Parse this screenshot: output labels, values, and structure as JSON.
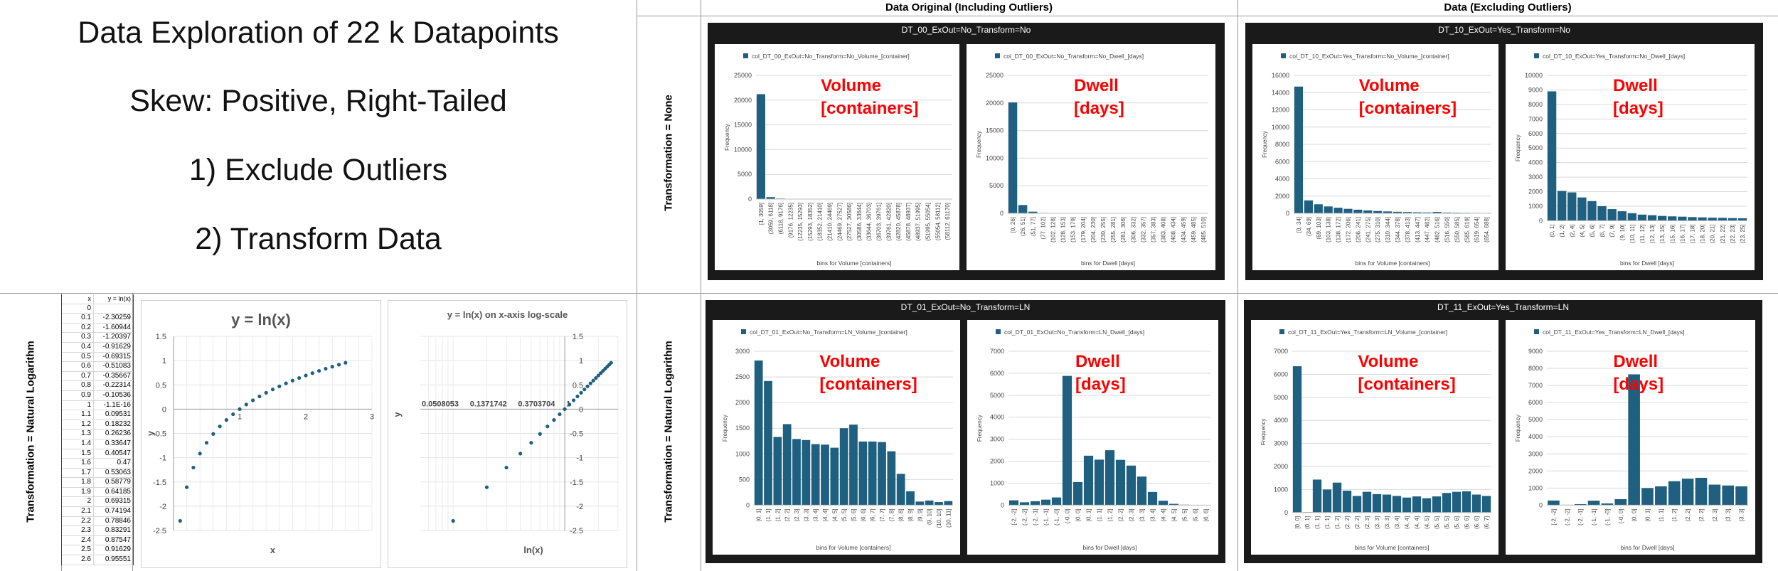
{
  "intro": {
    "title": "Data Exploration of 22 k Datapoints",
    "skew": "Skew: Positive, Right-Tailed",
    "step1": "1) Exclude Outliers",
    "step2": "2) Transform Data"
  },
  "headers": {
    "original": "Data Original (Including Outliers)",
    "excluding": "Data (Excluding Outliers)",
    "row_none": "Transformation = None",
    "row_ln": "Transformation = Natural Logarithm"
  },
  "ln_table": {
    "col_x": "x",
    "col_y": "y = ln(x)",
    "rows": [
      [
        "0",
        ""
      ],
      [
        "0.1",
        "-2.30259"
      ],
      [
        "0.2",
        "-1.60944"
      ],
      [
        "0.3",
        "-1.20397"
      ],
      [
        "0.4",
        "-0.91629"
      ],
      [
        "0.5",
        "-0.69315"
      ],
      [
        "0.6",
        "-0.51083"
      ],
      [
        "0.7",
        "-0.35667"
      ],
      [
        "0.8",
        "-0.22314"
      ],
      [
        "0.9",
        "-0.10536"
      ],
      [
        "1",
        "-1.1E-16"
      ],
      [
        "1.1",
        "0.09531"
      ],
      [
        "1.2",
        "0.18232"
      ],
      [
        "1.3",
        "0.26236"
      ],
      [
        "1.4",
        "0.33647"
      ],
      [
        "1.5",
        "0.40547"
      ],
      [
        "1.6",
        "0.47"
      ],
      [
        "1.7",
        "0.53063"
      ],
      [
        "1.8",
        "0.58779"
      ],
      [
        "1.9",
        "0.64185"
      ],
      [
        "2",
        "0.69315"
      ],
      [
        "2.1",
        "0.74194"
      ],
      [
        "2.2",
        "0.78846"
      ],
      [
        "2.3",
        "0.83291"
      ],
      [
        "2.4",
        "0.87547"
      ],
      [
        "2.5",
        "0.91629"
      ],
      [
        "2.6",
        "0.95551"
      ]
    ]
  },
  "colors": {
    "bar": "#1f5f7f",
    "overlay": "#ff0000",
    "panel": "#1a1a1a",
    "grid": "#d9d9d9"
  },
  "chart_data": [
    {
      "id": "ln_linear",
      "type": "scatter",
      "title": "y = ln(x)",
      "xlabel": "x",
      "ylabel": "y",
      "xlim": [
        0,
        3
      ],
      "ylim": [
        -2.5,
        1.5
      ],
      "xticks": [
        "1",
        "2",
        "3"
      ],
      "yticks": [
        "1.5",
        "1",
        "0.5",
        "0",
        "-0.5",
        "-1",
        "-1.5",
        "-2",
        "-2.5"
      ],
      "x": [
        0.1,
        0.2,
        0.3,
        0.4,
        0.5,
        0.6,
        0.7,
        0.8,
        0.9,
        1,
        1.1,
        1.2,
        1.3,
        1.4,
        1.5,
        1.6,
        1.7,
        1.8,
        1.9,
        2,
        2.1,
        2.2,
        2.3,
        2.4,
        2.5,
        2.6
      ],
      "y": [
        -2.30259,
        -1.60944,
        -1.20397,
        -0.91629,
        -0.69315,
        -0.51083,
        -0.35667,
        -0.22314,
        -0.10536,
        0,
        0.09531,
        0.18232,
        0.26236,
        0.33647,
        0.40547,
        0.47,
        0.53063,
        0.58779,
        0.64185,
        0.69315,
        0.74194,
        0.78846,
        0.83291,
        0.87547,
        0.91629,
        0.95551
      ]
    },
    {
      "id": "ln_log",
      "type": "scatter",
      "title": "y = ln(x) on x-axis log-scale",
      "xlabel": "ln(x)",
      "ylabel": "y",
      "xscale": "log",
      "xlim": [
        0.0508053,
        3
      ],
      "ylim": [
        -2.5,
        1.5
      ],
      "xticks": [
        "0.0508053",
        "0.1371742",
        "0.3703704",
        "1"
      ],
      "yticks": [
        "1.5",
        "1",
        "0.5",
        "0",
        "-0.5",
        "-1",
        "-1.5",
        "-2",
        "-2.5"
      ],
      "x": [
        0.1,
        0.2,
        0.3,
        0.4,
        0.5,
        0.6,
        0.7,
        0.8,
        0.9,
        1,
        1.1,
        1.2,
        1.3,
        1.4,
        1.5,
        1.6,
        1.7,
        1.8,
        1.9,
        2,
        2.1,
        2.2,
        2.3,
        2.4,
        2.5,
        2.6
      ],
      "y": [
        -2.30259,
        -1.60944,
        -1.20397,
        -0.91629,
        -0.69315,
        -0.51083,
        -0.35667,
        -0.22314,
        -0.10536,
        0,
        0.09531,
        0.18232,
        0.26236,
        0.33647,
        0.40547,
        0.47,
        0.53063,
        0.58779,
        0.64185,
        0.69315,
        0.74194,
        0.78846,
        0.83291,
        0.87547,
        0.91629,
        0.95551
      ]
    },
    {
      "id": "dt00_vol",
      "panel": "DT_00_ExOut=No_Transform=No",
      "type": "bar",
      "legend": "col_DT_00_ExOut=No_Transform=No_Volume_[container]",
      "overlay": [
        "Volume",
        "[containers]"
      ],
      "xlabel": "bins for Volume [containers]",
      "ylabel": "Frequency",
      "ylim": [
        0,
        25000
      ],
      "yticks": [
        "25000",
        "20000",
        "15000",
        "10000",
        "5000",
        "0"
      ],
      "categories": [
        "[1, 3059]",
        "(3059, 6118]",
        "(6118, 9176]",
        "(9176, 12235]",
        "(12235, 15293]",
        "(15293, 18352]",
        "(18352, 21410]",
        "(21410, 24469]",
        "(24469, 27527]",
        "(27527, 30586]",
        "(30586, 33644]",
        "(33644, 36703]",
        "(36703, 39761]",
        "(39761, 42820]",
        "(42820, 45878]",
        "(45878, 48937]",
        "(48937, 51995]",
        "(51995, 55054]",
        "(55054, 58112]",
        "(58112, 61170]"
      ],
      "values": [
        21200,
        400,
        120,
        60,
        30,
        20,
        15,
        10,
        8,
        6,
        5,
        4,
        3,
        3,
        2,
        2,
        1,
        1,
        1,
        1
      ]
    },
    {
      "id": "dt00_dwell",
      "panel": "DT_00_ExOut=No_Transform=No",
      "type": "bar",
      "legend": "col_DT_00_ExOut=No_Transform=No_Dwell_[days]",
      "overlay": [
        "Dwell",
        "[days]"
      ],
      "xlabel": "bins for Dwell [days]",
      "ylabel": "Frequency",
      "ylim": [
        0,
        25000
      ],
      "yticks": [
        "25000",
        "20000",
        "15000",
        "10000",
        "5000",
        "0"
      ],
      "categories": [
        "[0, 26]",
        "(26, 51]",
        "(51, 77]",
        "(77, 102]",
        "(102, 128]",
        "(128, 153]",
        "(153, 179]",
        "(179, 204]",
        "(204, 230]",
        "(230, 255]",
        "(255, 281]",
        "(281, 306]",
        "(306, 332]",
        "(332, 357]",
        "(357, 383]",
        "(383, 408]",
        "(408, 434]",
        "(434, 459]",
        "(459, 485]",
        "(485, 510]"
      ],
      "values": [
        20100,
        1500,
        300,
        80,
        40,
        20,
        12,
        8,
        6,
        5,
        4,
        3,
        3,
        2,
        2,
        1,
        1,
        1,
        1,
        1
      ]
    },
    {
      "id": "dt10_vol",
      "panel": "DT_10_ExOut=Yes_Transform=No",
      "type": "bar",
      "legend": "col_DT_10_ExOut=Yes_Transform=No_Volume_[container]",
      "overlay": [
        "Volume",
        "[containers]"
      ],
      "xlabel": "bins for Volume [containers]",
      "ylabel": "Frequency",
      "ylim": [
        0,
        16000
      ],
      "yticks": [
        "16000",
        "14000",
        "12000",
        "10000",
        "8000",
        "6000",
        "4000",
        "2000",
        "0"
      ],
      "categories": [
        "[0, 34]",
        "(34, 69]",
        "(69, 103]",
        "(103, 138]",
        "(138, 172]",
        "(172, 206]",
        "(206, 241]",
        "(241, 275]",
        "(275, 310]",
        "(310, 344]",
        "(344, 378]",
        "(378, 413]",
        "(413, 447]",
        "(447, 482]",
        "(482, 516]",
        "(516, 550]",
        "(550, 585]",
        "(585, 619]",
        "(619, 654]",
        "(654, 688]"
      ],
      "values": [
        14700,
        1500,
        1050,
        800,
        650,
        520,
        420,
        340,
        270,
        220,
        180,
        150,
        120,
        100,
        160,
        90,
        75,
        60,
        50,
        45
      ]
    },
    {
      "id": "dt10_dwell",
      "panel": "DT_10_ExOut=Yes_Transform=No",
      "type": "bar",
      "legend": "col_DT_10_ExOut=Yes_Transform=No_Dwell_[days]",
      "overlay": [
        "Dwell",
        "[days]"
      ],
      "xlabel": "bins for Dwell [days]",
      "ylabel": "Frequency",
      "ylim": [
        0,
        10000
      ],
      "yticks": [
        "10000",
        "9000",
        "8000",
        "7000",
        "6000",
        "5000",
        "4000",
        "3000",
        "2000",
        "1000",
        "0"
      ],
      "categories": [
        "(0, 1]",
        "(1, 2]",
        "(2, 4]",
        "(4, 5]",
        "(5, 6]",
        "(6, 7]",
        "(7, 9]",
        "(9, 10]",
        "(10, 11]",
        "(11, 12]",
        "(12, 13]",
        "(13, 15]",
        "(15, 16]",
        "(16, 17]",
        "(17, 18]",
        "(18, 20]",
        "(20, 21]",
        "(21, 22]",
        "(22, 23]",
        "(23, 25]"
      ],
      "values": [
        8900,
        2050,
        1950,
        1600,
        1350,
        1000,
        800,
        650,
        520,
        420,
        380,
        330,
        300,
        280,
        250,
        230,
        210,
        200,
        180,
        170
      ]
    },
    {
      "id": "dt01_vol",
      "panel": "DT_01_ExOut=No_Transform=LN",
      "type": "bar",
      "legend": "col_DT_01_ExOut=No_Transform=LN_Volume_[container]",
      "overlay": [
        "Volume",
        "[containers]"
      ],
      "xlabel": "bins for Volume [containers]",
      "ylabel": "Frequency",
      "ylim": [
        0,
        3000
      ],
      "yticks": [
        "3000",
        "2500",
        "2000",
        "1500",
        "1000",
        "500",
        "0"
      ],
      "categories": [
        "(0, 1]",
        "(1, 1]",
        "(1, 2]",
        "(2, 2]",
        "(2, 3]",
        "(3, 3]",
        "(3, 4]",
        "(4, 4]",
        "(4, 5]",
        "(5, 5]",
        "(5, 6]",
        "(6, 6]",
        "(6, 7]",
        "(7, 7]",
        "(7, 8]",
        "(8, 8]",
        "(8, 9]",
        "(9, 9]",
        "(9, 10]",
        "(10, 10]",
        "(10, 11]"
      ],
      "values": [
        2820,
        2420,
        1330,
        1580,
        1290,
        1270,
        1190,
        1180,
        1120,
        1500,
        1570,
        1240,
        1240,
        1230,
        1050,
        610,
        270,
        70,
        90,
        60,
        80
      ]
    },
    {
      "id": "dt01_dwell",
      "panel": "DT_01_ExOut=No_Transform=LN",
      "type": "bar",
      "legend": "col_DT_01_ExOut=No_Transform=LN_Dwell_[days]",
      "overlay": [
        "Dwell",
        "[days]"
      ],
      "xlabel": "bins for Dwell [days]",
      "ylabel": "Frequency",
      "ylim": [
        0,
        7000
      ],
      "yticks": [
        "7000",
        "6000",
        "5000",
        "4000",
        "3000",
        "2000",
        "1000",
        "0"
      ],
      "categories": [
        "[-2, -2]",
        "(-2, -2]",
        "(-2, -1]",
        "(-1, -1]",
        "(-1, -0]",
        "(-0, 0]",
        "(0, 0]",
        "(0, 1]",
        "(1, 1]",
        "(1, 2]",
        "(2, 2]",
        "(2, 3]",
        "(3, 3]",
        "(3, 4]",
        "(4, 4]",
        "(4, 5]",
        "(5, 5]",
        "(5, 6]",
        "(6, 6]"
      ],
      "values": [
        220,
        130,
        180,
        250,
        350,
        5880,
        1050,
        2250,
        2070,
        2500,
        2060,
        1800,
        1300,
        600,
        200,
        60,
        20,
        10,
        5
      ]
    },
    {
      "id": "dt11_vol",
      "panel": "DT_11_ExOut=Yes_Transform=LN",
      "type": "bar",
      "legend": "col_DT_11_ExOut=Yes_Transform=LN_Volume_[container]",
      "overlay": [
        "Volume",
        "[containers]"
      ],
      "xlabel": "bins for Volume [containers]",
      "ylabel": "Frequency",
      "ylim": [
        0,
        7000
      ],
      "yticks": [
        "7000",
        "6000",
        "5000",
        "4000",
        "3000",
        "2000",
        "1000",
        "0"
      ],
      "categories": [
        "[0, 0]",
        "(0, 1]",
        "(1, 1]",
        "(1, 1]",
        "(1, 2]",
        "(2, 2]",
        "(2, 2]",
        "(2, 3]",
        "(3, 3]",
        "(3, 3]",
        "(3, 4]",
        "(4, 4]",
        "(4, 4]",
        "(4, 5]",
        "(5, 5]",
        "(5, 5]",
        "(5, 6]",
        "(6, 6]",
        "(6, 6]",
        "(6, 7]"
      ],
      "values": [
        6350,
        20,
        1430,
        1000,
        1300,
        950,
        720,
        900,
        800,
        780,
        720,
        650,
        700,
        620,
        700,
        850,
        900,
        920,
        780,
        720
      ]
    },
    {
      "id": "dt11_dwell",
      "panel": "DT_11_ExOut=Yes_Transform=LN",
      "type": "bar",
      "legend": "col_DT_11_ExOut=Yes_Transform=LN_Dwell_[days]",
      "overlay": [
        "Dwell",
        "[days]"
      ],
      "xlabel": "bins for Dwell [days]",
      "ylabel": "Frequency",
      "ylim": [
        0,
        9000
      ],
      "yticks": [
        "9000",
        "8000",
        "7000",
        "6000",
        "5000",
        "4000",
        "3000",
        "2000",
        "1000",
        "0"
      ],
      "categories": [
        "[-2, -2]",
        "(-2, -2]",
        "(-2, -1]",
        "(-1, -1]",
        "(-1, -0]",
        "(-0, 0]",
        "(0, 0]",
        "(0, 1]",
        "(1, 1]",
        "(1, 2]",
        "(2, 2]",
        "(2, 2]",
        "(2, 3]",
        "(3, 3]",
        "(3, 3]"
      ],
      "values": [
        270,
        20,
        60,
        260,
        100,
        350,
        7650,
        1000,
        1100,
        1400,
        1550,
        1600,
        1200,
        1150,
        1100
      ]
    }
  ]
}
